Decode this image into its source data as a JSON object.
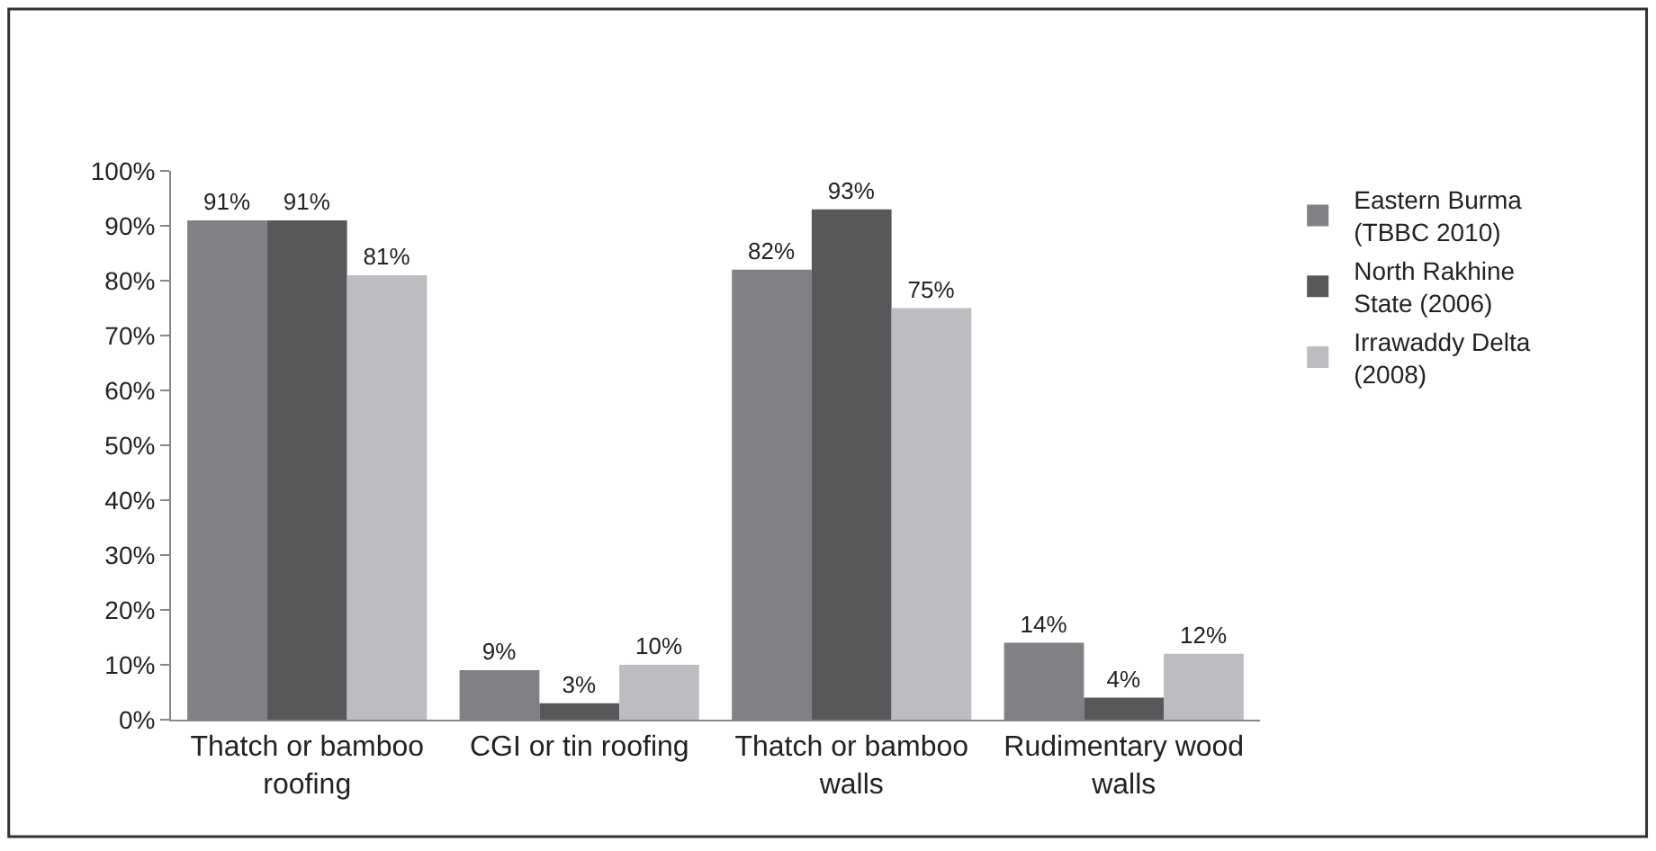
{
  "chart_data": {
    "type": "bar",
    "categories": [
      "Thatch or bamboo roofing",
      "CGI or tin roofing",
      "Thatch or bamboo walls",
      "Rudimentary wood walls"
    ],
    "series": [
      {
        "name": "Eastern Burma (TBBC 2010)",
        "color": "#818185",
        "values": [
          91,
          9,
          82,
          14
        ],
        "value_labels": [
          "91%",
          "9%",
          "82%",
          "14%"
        ]
      },
      {
        "name": "North Rakhine State (2006)",
        "color": "#58585b",
        "values": [
          91,
          3,
          93,
          4
        ],
        "value_labels": [
          "91%",
          "3%",
          "93%",
          "4%"
        ]
      },
      {
        "name": "Irrawaddy Delta (2008)",
        "color": "#bdbdc1",
        "values": [
          81,
          10,
          75,
          12
        ],
        "value_labels": [
          "81%",
          "10%",
          "75%",
          "12%"
        ]
      }
    ],
    "ylim": [
      0,
      100
    ],
    "yticks": [
      {
        "value": 0,
        "label": "0%"
      },
      {
        "value": 10,
        "label": "10%"
      },
      {
        "value": 20,
        "label": "20%"
      },
      {
        "value": 30,
        "label": "30%"
      },
      {
        "value": 40,
        "label": "40%"
      },
      {
        "value": 50,
        "label": "50%"
      },
      {
        "value": 60,
        "label": "60%"
      },
      {
        "value": 70,
        "label": "70%"
      },
      {
        "value": 80,
        "label": "80%"
      },
      {
        "value": 90,
        "label": "90%"
      },
      {
        "value": 100,
        "label": "100%"
      }
    ],
    "legend": "top right"
  }
}
